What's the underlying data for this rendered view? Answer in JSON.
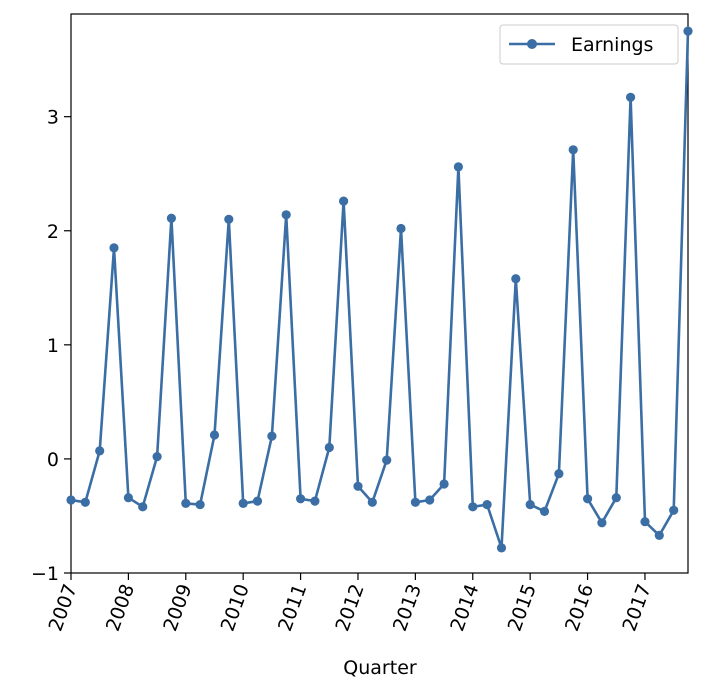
{
  "chart_data": {
    "type": "line",
    "title": "",
    "xlabel": "Quarter",
    "ylabel": "",
    "xlim": [
      "2007 Q1",
      "2017 Q4"
    ],
    "ylim": [
      -1,
      3.9
    ],
    "x_tick_labels": [
      "2007",
      "2008",
      "2009",
      "2010",
      "2011",
      "2012",
      "2013",
      "2014",
      "2015",
      "2016",
      "2017"
    ],
    "y_tick_labels": [
      "−1",
      "0",
      "1",
      "2",
      "3"
    ],
    "y_tick_values": [
      -1,
      0,
      1,
      2,
      3
    ],
    "grid": false,
    "legend": {
      "placement": "top-right",
      "entries": [
        "Earnings"
      ]
    },
    "colors": {
      "series": "#3a6ea5"
    },
    "series": [
      {
        "name": "Earnings",
        "x": [
          "2007 Q1",
          "2007 Q2",
          "2007 Q3",
          "2007 Q4",
          "2008 Q1",
          "2008 Q2",
          "2008 Q3",
          "2008 Q4",
          "2009 Q1",
          "2009 Q2",
          "2009 Q3",
          "2009 Q4",
          "2010 Q1",
          "2010 Q2",
          "2010 Q3",
          "2010 Q4",
          "2011 Q1",
          "2011 Q2",
          "2011 Q3",
          "2011 Q4",
          "2012 Q1",
          "2012 Q2",
          "2012 Q3",
          "2012 Q4",
          "2013 Q1",
          "2013 Q2",
          "2013 Q3",
          "2013 Q4",
          "2014 Q1",
          "2014 Q2",
          "2014 Q3",
          "2014 Q4",
          "2015 Q1",
          "2015 Q2",
          "2015 Q3",
          "2015 Q4",
          "2016 Q1",
          "2016 Q2",
          "2016 Q3",
          "2016 Q4",
          "2017 Q1",
          "2017 Q2",
          "2017 Q3",
          "2017 Q4"
        ],
        "values": [
          -0.36,
          -0.38,
          0.07,
          1.85,
          -0.34,
          -0.42,
          0.02,
          2.11,
          -0.39,
          -0.4,
          0.21,
          2.1,
          -0.39,
          -0.37,
          0.2,
          2.14,
          -0.35,
          -0.37,
          0.1,
          2.26,
          -0.24,
          -0.38,
          -0.01,
          2.02,
          -0.38,
          -0.36,
          -0.22,
          2.56,
          -0.42,
          -0.4,
          -0.78,
          1.58,
          -0.4,
          -0.46,
          -0.13,
          2.71,
          -0.35,
          -0.56,
          -0.34,
          3.17,
          -0.55,
          -0.67,
          -0.45,
          3.75
        ]
      }
    ]
  }
}
